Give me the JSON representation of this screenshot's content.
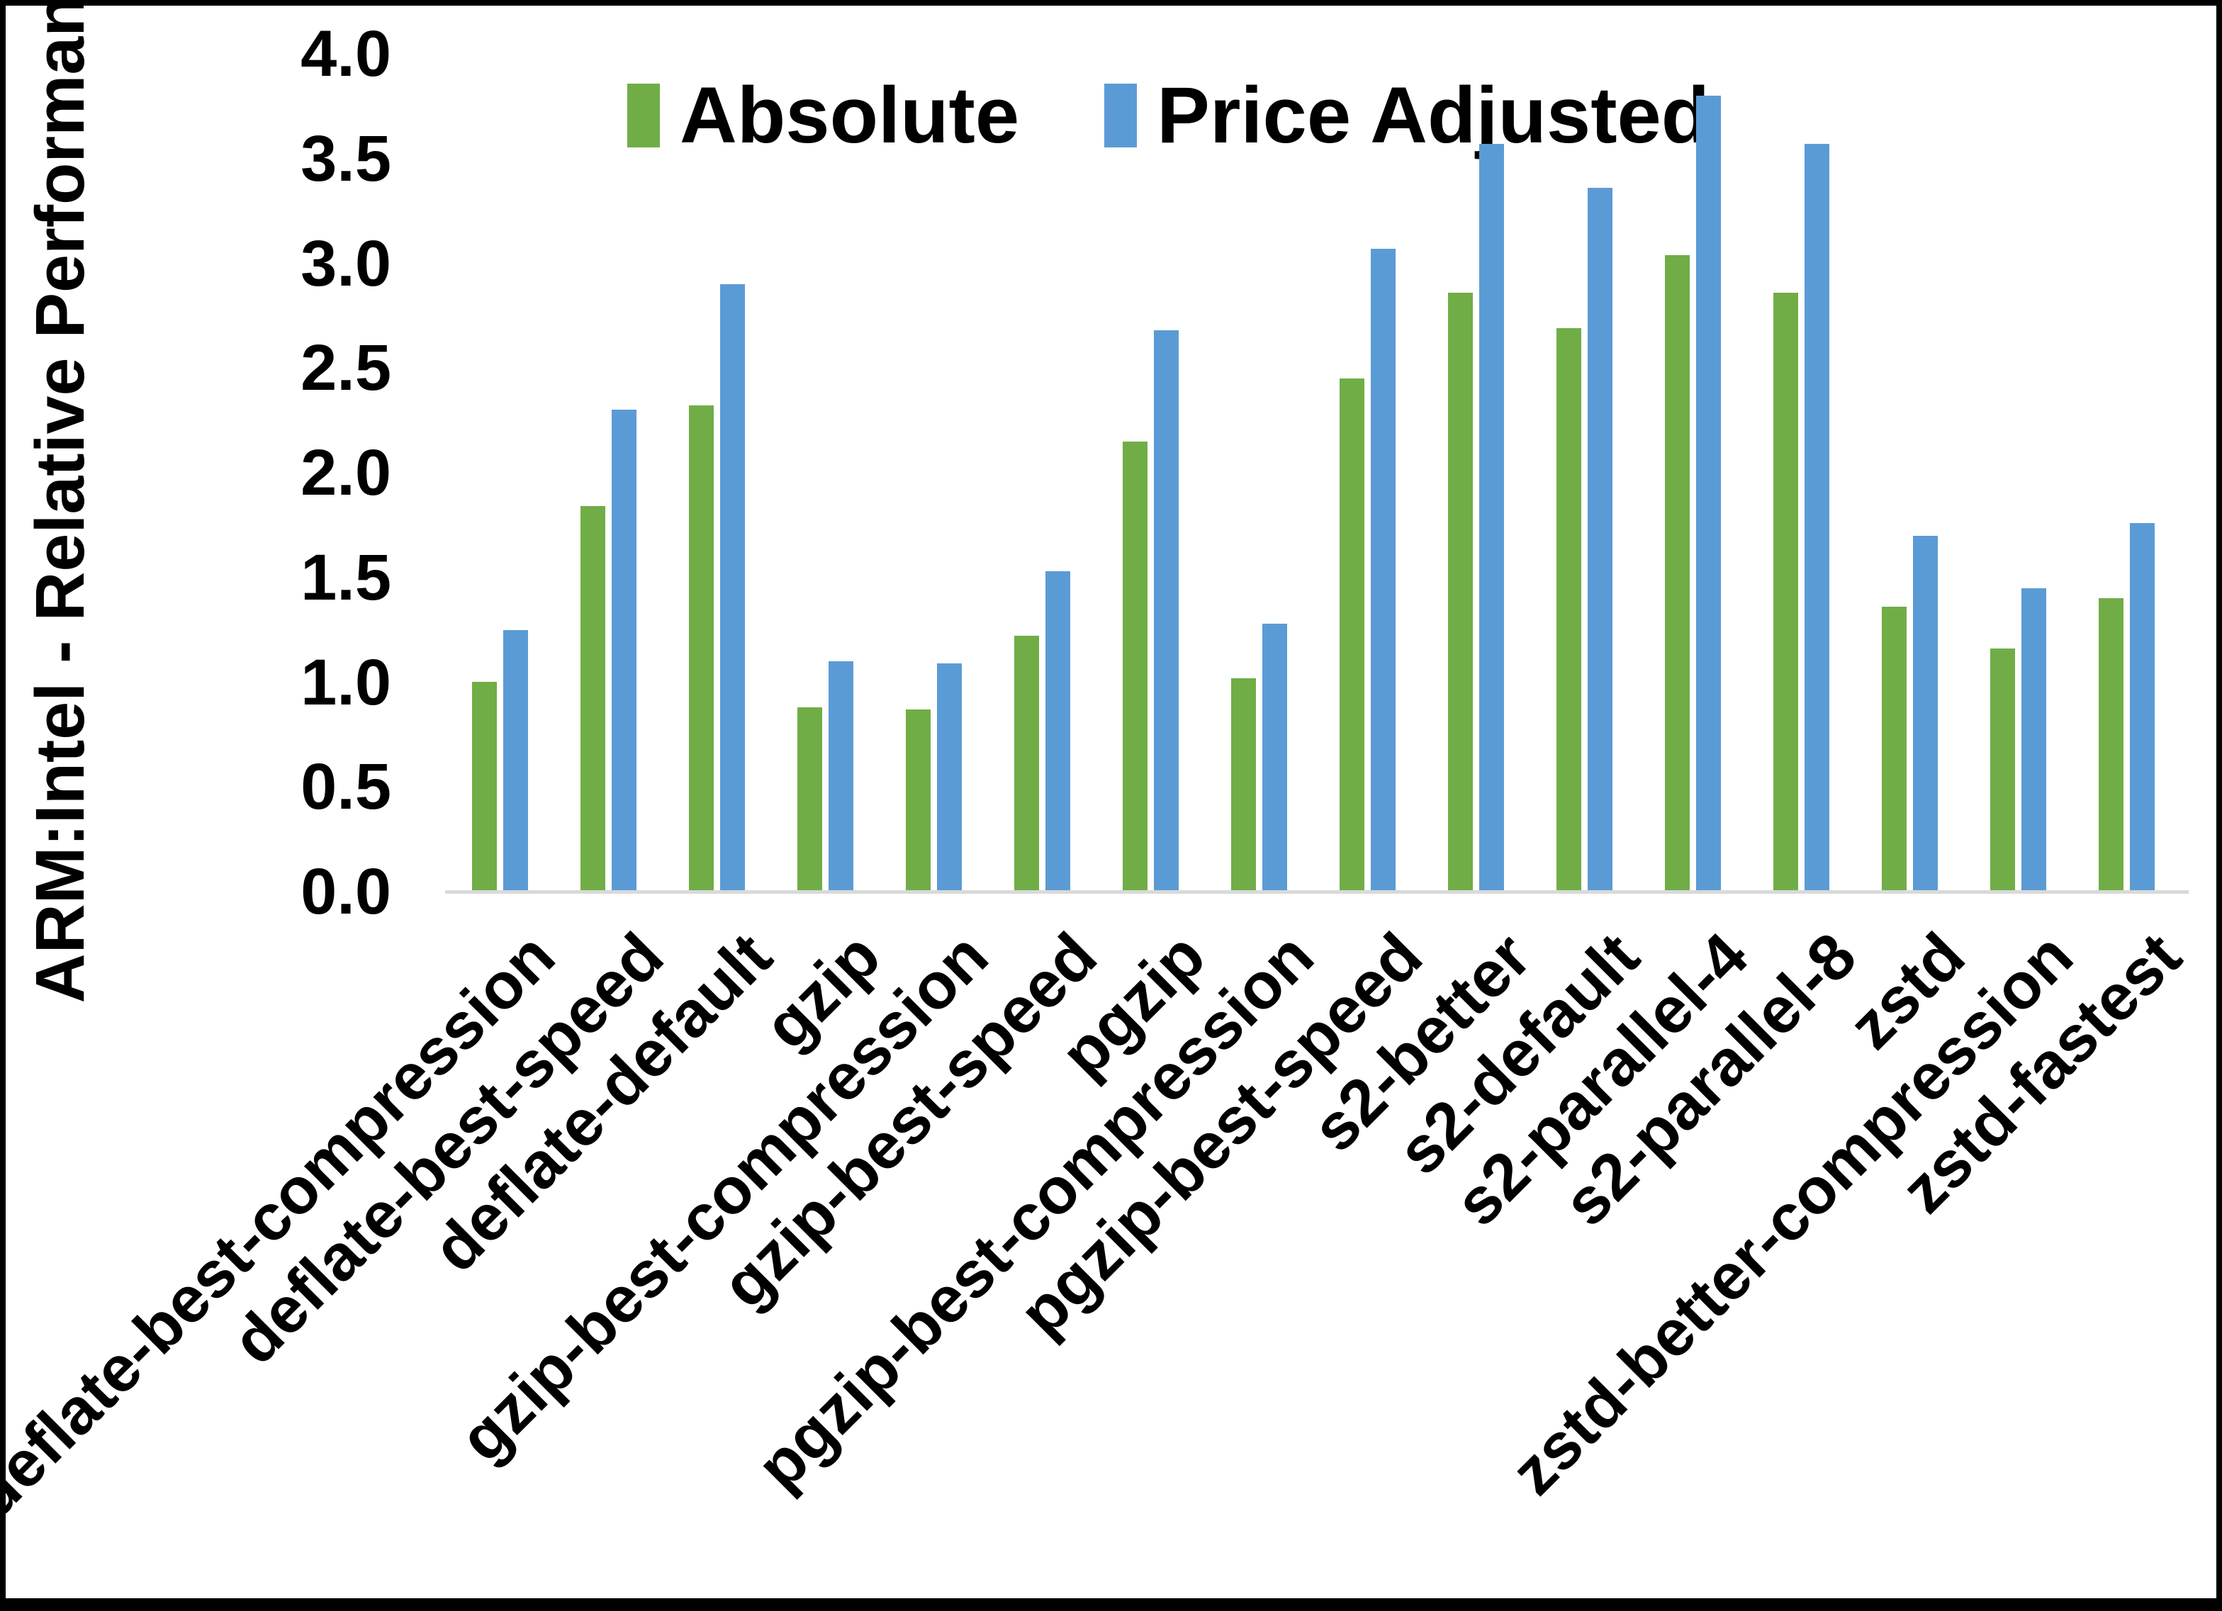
{
  "chart_data": {
    "type": "bar",
    "title": "",
    "xlabel": "",
    "ylabel": "ARM:Intel - Relative Performance",
    "ylim": [
      0.0,
      4.0
    ],
    "y_ticks": [
      "0.0",
      "0.5",
      "1.0",
      "1.5",
      "2.0",
      "2.5",
      "3.0",
      "3.5",
      "4.0"
    ],
    "grid": false,
    "legend_position": "top",
    "categories": [
      "deflate-best-compression",
      "deflate-best-speed",
      "deflate-default",
      "gzip",
      "gzip-best-compression",
      "gzip-best-speed",
      "pgzip",
      "pgzip-best-compression",
      "pgzip-best-speed",
      "s2-better",
      "s2-default",
      "s2-parallel-4",
      "s2-parallel-8",
      "zstd",
      "zstd-better-compression",
      "zstd-fastest"
    ],
    "series": [
      {
        "name": "Absolute",
        "color": "#70AD47",
        "values": [
          1.0,
          1.84,
          2.32,
          0.88,
          0.87,
          1.22,
          2.15,
          1.02,
          2.45,
          2.86,
          2.69,
          3.04,
          2.86,
          1.36,
          1.16,
          1.4
        ]
      },
      {
        "name": "Price Adjusted",
        "color": "#5B9BD5",
        "values": [
          1.25,
          2.3,
          2.9,
          1.1,
          1.09,
          1.53,
          2.68,
          1.28,
          3.07,
          3.57,
          3.36,
          3.8,
          3.57,
          1.7,
          1.45,
          1.76
        ]
      }
    ],
    "colors": {
      "axis_line": "#D9D9D9",
      "text": "#000000",
      "background": "#FFFFFF",
      "frame": "#000000"
    }
  }
}
